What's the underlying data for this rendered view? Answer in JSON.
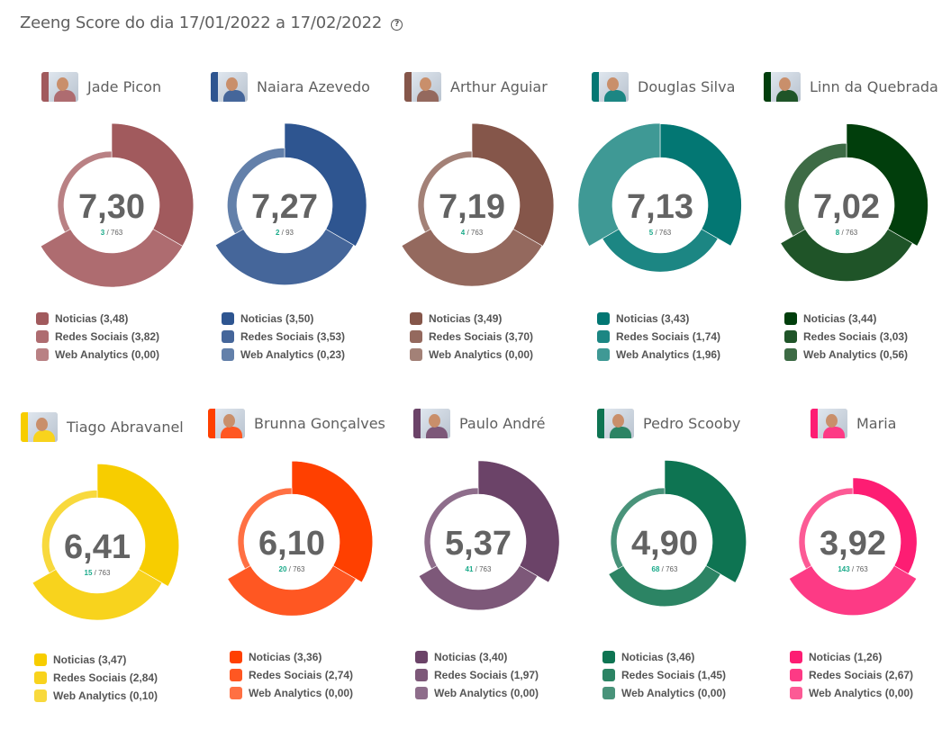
{
  "header": {
    "title": "Zeeng Score do dia 17/01/2022 a 17/02/2022",
    "help_icon": "question-circle-icon"
  },
  "chart_data": {
    "type": "variable-radius-donut",
    "title": "Zeeng Score do dia 17/01/2022 a 17/02/2022",
    "components": [
      "Noticias",
      "Redes Sociais",
      "Web Analytics"
    ],
    "participants": [
      {
        "name": "Jade Picon",
        "score": "7,30",
        "rank": "3",
        "total": "763",
        "values": [
          3.48,
          3.82,
          0.0
        ],
        "colors": [
          "#a15a5d",
          "#ae6c70",
          "#b98184"
        ]
      },
      {
        "name": "Naiara Azevedo",
        "score": "7,27",
        "rank": "2",
        "total": "93",
        "values": [
          3.5,
          3.53,
          0.23
        ],
        "colors": [
          "#2e5590",
          "#45669a",
          "#6380aa"
        ]
      },
      {
        "name": "Arthur Aguiar",
        "score": "7,19",
        "rank": "4",
        "total": "763",
        "values": [
          3.49,
          3.7,
          0.0
        ],
        "colors": [
          "#85564a",
          "#94695e",
          "#a38177"
        ]
      },
      {
        "name": "Douglas Silva",
        "score": "7,13",
        "rank": "5",
        "total": "763",
        "values": [
          3.43,
          1.74,
          1.96
        ],
        "colors": [
          "#037773",
          "#1c8683",
          "#3f9995"
        ]
      },
      {
        "name": "Linn da Quebrada",
        "score": "7,02",
        "rank": "8",
        "total": "763",
        "values": [
          3.44,
          3.03,
          0.56
        ],
        "colors": [
          "#013e0c",
          "#1f5428",
          "#3d6b45"
        ]
      },
      {
        "name": "Tiago Abravanel",
        "score": "6,41",
        "rank": "15",
        "total": "763",
        "values": [
          3.47,
          2.84,
          0.1
        ],
        "colors": [
          "#f7cd00",
          "#f8d31d",
          "#f8d93d"
        ]
      },
      {
        "name": "Brunna Gonçalves",
        "score": "6,10",
        "rank": "20",
        "total": "763",
        "values": [
          3.36,
          2.74,
          0.0
        ],
        "colors": [
          "#ff4000",
          "#ff5722",
          "#ff7043"
        ]
      },
      {
        "name": "Paulo André",
        "score": "5,37",
        "rank": "41",
        "total": "763",
        "values": [
          3.4,
          1.97,
          0.0
        ],
        "colors": [
          "#6b4368",
          "#7d5879",
          "#8e6d8b"
        ]
      },
      {
        "name": "Pedro Scooby",
        "score": "4,90",
        "rank": "68",
        "total": "763",
        "values": [
          3.46,
          1.45,
          0.0
        ],
        "colors": [
          "#0e7452",
          "#2c8464",
          "#49937a"
        ]
      },
      {
        "name": "Maria",
        "score": "3,92",
        "rank": "143",
        "total": "763",
        "values": [
          1.26,
          2.67,
          0.0
        ],
        "colors": [
          "#fd1d73",
          "#fd3a85",
          "#fc5a95"
        ]
      }
    ],
    "legend_labels": [
      [
        "Noticias (3,48)",
        "Redes Sociais (3,82)",
        "Web Analytics (0,00)"
      ],
      [
        "Noticias (3,50)",
        "Redes Sociais (3,53)",
        "Web Analytics (0,23)"
      ],
      [
        "Noticias (3,49)",
        "Redes Sociais (3,70)",
        "Web Analytics (0,00)"
      ],
      [
        "Noticias (3,43)",
        "Redes Sociais (1,74)",
        "Web Analytics (1,96)"
      ],
      [
        "Noticias (3,44)",
        "Redes Sociais (3,03)",
        "Web Analytics (0,56)"
      ],
      [
        "Noticias (3,47)",
        "Redes Sociais (2,84)",
        "Web Analytics (0,10)"
      ],
      [
        "Noticias (3,36)",
        "Redes Sociais (2,74)",
        "Web Analytics (0,00)"
      ],
      [
        "Noticias (3,40)",
        "Redes Sociais (1,97)",
        "Web Analytics (0,00)"
      ],
      [
        "Noticias (3,46)",
        "Redes Sociais (1,45)",
        "Web Analytics (0,00)"
      ],
      [
        "Noticias (1,26)",
        "Redes Sociais (2,67)",
        "Web Analytics (0,00)"
      ]
    ],
    "rank_color": "#1aaa8a"
  }
}
